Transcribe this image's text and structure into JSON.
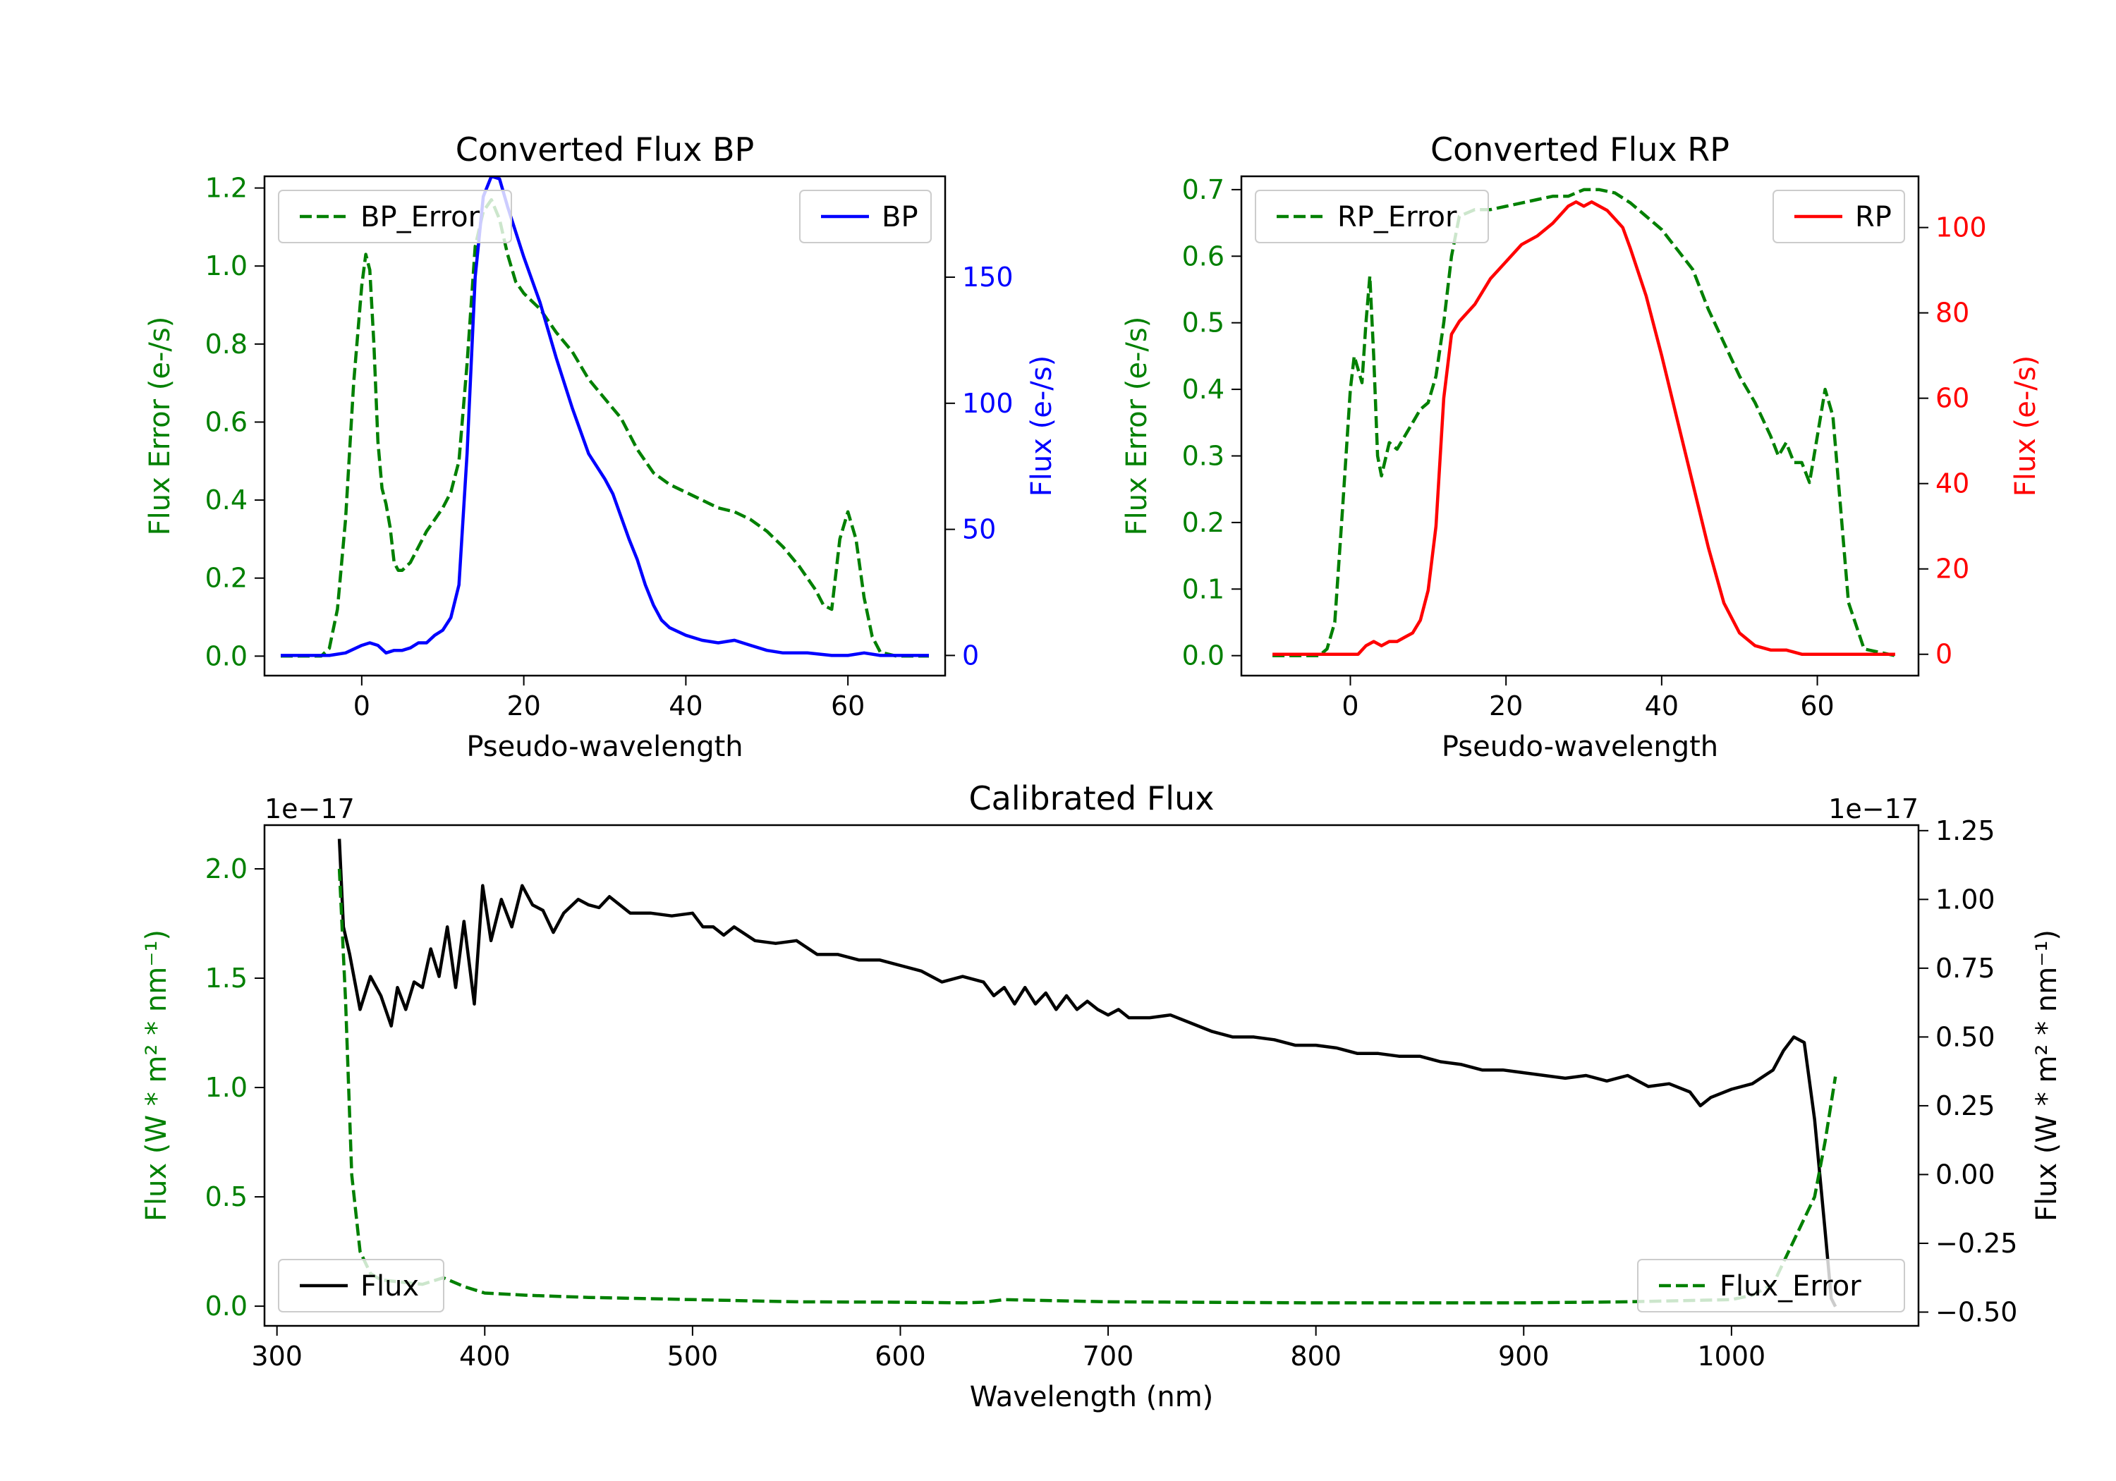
{
  "colors": {
    "green": "#008000",
    "blue": "#0000ff",
    "red": "#ff0000",
    "black": "#000000"
  },
  "chart_data": [
    {
      "id": "bp",
      "type": "line",
      "title": "Converted Flux BP",
      "xlabel": "Pseudo-wavelength",
      "ylabel_left": "Flux Error (e-/s)",
      "ylabel_right": "Flux (e-/s)",
      "xlim": [
        -12,
        72
      ],
      "ylim_left": [
        -0.05,
        1.23
      ],
      "ylim_right": [
        -8,
        190
      ],
      "xticks": [
        {
          "v": 0,
          "label": "0"
        },
        {
          "v": 20,
          "label": "20"
        },
        {
          "v": 40,
          "label": "40"
        },
        {
          "v": 60,
          "label": "60"
        }
      ],
      "yticks_left": [
        {
          "v": 0.0,
          "label": "0.0"
        },
        {
          "v": 0.2,
          "label": "0.2"
        },
        {
          "v": 0.4,
          "label": "0.4"
        },
        {
          "v": 0.6,
          "label": "0.6"
        },
        {
          "v": 0.8,
          "label": "0.8"
        },
        {
          "v": 1.0,
          "label": "1.0"
        },
        {
          "v": 1.2,
          "label": "1.2"
        }
      ],
      "yticks_right": [
        {
          "v": 0,
          "label": "0"
        },
        {
          "v": 50,
          "label": "50"
        },
        {
          "v": 100,
          "label": "100"
        },
        {
          "v": 150,
          "label": "150"
        }
      ],
      "series": [
        {
          "name": "BP_Error",
          "axis": "left",
          "color": "#008000",
          "dashed": true,
          "x": [
            -10,
            -5,
            -4,
            -3,
            -2,
            -1,
            0,
            0.5,
            1,
            1.5,
            2,
            2.5,
            3,
            3.5,
            4,
            4.5,
            5,
            5.5,
            6,
            7,
            8,
            9,
            10,
            11,
            12,
            13,
            14,
            15,
            16,
            17,
            18,
            19,
            20,
            22,
            24,
            26,
            28,
            30,
            32,
            34,
            36,
            38,
            40,
            42,
            44,
            46,
            48,
            50,
            52,
            54,
            56,
            57,
            58,
            59,
            60,
            61,
            62,
            63,
            64,
            66,
            68,
            70
          ],
          "y": [
            0.0,
            0.0,
            0.02,
            0.12,
            0.35,
            0.7,
            0.95,
            1.03,
            0.99,
            0.8,
            0.55,
            0.43,
            0.39,
            0.33,
            0.24,
            0.22,
            0.22,
            0.23,
            0.24,
            0.28,
            0.32,
            0.35,
            0.38,
            0.42,
            0.5,
            0.75,
            1.05,
            1.14,
            1.17,
            1.12,
            1.03,
            0.96,
            0.93,
            0.89,
            0.83,
            0.78,
            0.71,
            0.66,
            0.61,
            0.53,
            0.47,
            0.44,
            0.42,
            0.4,
            0.38,
            0.37,
            0.35,
            0.32,
            0.28,
            0.23,
            0.17,
            0.13,
            0.12,
            0.3,
            0.37,
            0.3,
            0.15,
            0.05,
            0.01,
            0.0,
            0.0,
            0.0
          ]
        },
        {
          "name": "BP",
          "axis": "right",
          "color": "#0000ff",
          "dashed": false,
          "x": [
            -10,
            -4,
            -2,
            0,
            1,
            2,
            3,
            4,
            5,
            6,
            7,
            8,
            9,
            10,
            11,
            12,
            13,
            14,
            15,
            16,
            17,
            18,
            19,
            20,
            22,
            24,
            26,
            28,
            30,
            31,
            32,
            33,
            34,
            35,
            36,
            37,
            38,
            40,
            42,
            44,
            46,
            48,
            50,
            52,
            55,
            58,
            60,
            62,
            64,
            66,
            70
          ],
          "y": [
            0,
            0,
            1,
            4,
            5,
            4,
            1,
            2,
            2,
            3,
            5,
            5,
            8,
            10,
            15,
            28,
            80,
            150,
            182,
            190,
            189,
            178,
            168,
            158,
            140,
            118,
            98,
            80,
            70,
            64,
            55,
            46,
            38,
            28,
            20,
            14,
            11,
            8,
            6,
            5,
            6,
            4,
            2,
            1,
            1,
            0,
            0,
            1,
            0,
            0,
            0
          ]
        }
      ],
      "legends": [
        {
          "loc": "upper left",
          "entries": [
            {
              "series": "BP_Error",
              "label": "BP_Error"
            }
          ]
        },
        {
          "loc": "upper right",
          "entries": [
            {
              "series": "BP",
              "label": "BP"
            }
          ]
        }
      ]
    },
    {
      "id": "rp",
      "type": "line",
      "title": "Converted Flux RP",
      "xlabel": "Pseudo-wavelength",
      "ylabel_left": "Flux Error (e-/s)",
      "ylabel_right": "Flux (e-/s)",
      "xlim": [
        -14,
        73
      ],
      "ylim_left": [
        -0.03,
        0.72
      ],
      "ylim_right": [
        -5,
        112
      ],
      "xticks": [
        {
          "v": 0,
          "label": "0"
        },
        {
          "v": 20,
          "label": "20"
        },
        {
          "v": 40,
          "label": "40"
        },
        {
          "v": 60,
          "label": "60"
        }
      ],
      "yticks_left": [
        {
          "v": 0.0,
          "label": "0.0"
        },
        {
          "v": 0.1,
          "label": "0.1"
        },
        {
          "v": 0.2,
          "label": "0.2"
        },
        {
          "v": 0.3,
          "label": "0.3"
        },
        {
          "v": 0.4,
          "label": "0.4"
        },
        {
          "v": 0.5,
          "label": "0.5"
        },
        {
          "v": 0.6,
          "label": "0.6"
        },
        {
          "v": 0.7,
          "label": "0.7"
        }
      ],
      "yticks_right": [
        {
          "v": 0,
          "label": "0"
        },
        {
          "v": 20,
          "label": "20"
        },
        {
          "v": 40,
          "label": "40"
        },
        {
          "v": 60,
          "label": "60"
        },
        {
          "v": 80,
          "label": "80"
        },
        {
          "v": 100,
          "label": "100"
        }
      ],
      "series": [
        {
          "name": "RP_Error",
          "axis": "left",
          "color": "#008000",
          "dashed": true,
          "x": [
            -10,
            -4,
            -3,
            -2,
            -1,
            0,
            0.5,
            1,
            1.5,
            2,
            2.5,
            3,
            3.5,
            4,
            5,
            6,
            7,
            8,
            9,
            10,
            11,
            12,
            13,
            14,
            16,
            18,
            20,
            22,
            24,
            26,
            28,
            30,
            32,
            34,
            36,
            38,
            40,
            42,
            44,
            46,
            48,
            50,
            52,
            54,
            55,
            56,
            57,
            58,
            59,
            60,
            61,
            62,
            63,
            64,
            66,
            70
          ],
          "y": [
            0.0,
            0.0,
            0.01,
            0.05,
            0.22,
            0.4,
            0.45,
            0.43,
            0.41,
            0.5,
            0.57,
            0.45,
            0.3,
            0.27,
            0.32,
            0.31,
            0.33,
            0.35,
            0.37,
            0.38,
            0.42,
            0.5,
            0.6,
            0.66,
            0.67,
            0.67,
            0.675,
            0.68,
            0.685,
            0.69,
            0.69,
            0.7,
            0.7,
            0.695,
            0.68,
            0.66,
            0.64,
            0.61,
            0.58,
            0.52,
            0.47,
            0.42,
            0.38,
            0.33,
            0.3,
            0.32,
            0.29,
            0.29,
            0.26,
            0.33,
            0.4,
            0.36,
            0.22,
            0.08,
            0.01,
            0.0
          ]
        },
        {
          "name": "RP",
          "axis": "right",
          "color": "#ff0000",
          "dashed": false,
          "x": [
            -10,
            -2,
            0,
            1,
            2,
            3,
            4,
            5,
            6,
            7,
            8,
            9,
            10,
            11,
            12,
            13,
            14,
            16,
            18,
            20,
            22,
            24,
            26,
            27,
            28,
            29,
            30,
            31,
            32,
            33,
            34,
            35,
            36,
            38,
            40,
            42,
            44,
            46,
            48,
            50,
            52,
            54,
            56,
            58,
            62,
            66,
            70
          ],
          "y": [
            0,
            0,
            0,
            0,
            2,
            3,
            2,
            3,
            3,
            4,
            5,
            8,
            15,
            30,
            60,
            75,
            78,
            82,
            88,
            92,
            96,
            98,
            101,
            103,
            105,
            106,
            105,
            106,
            105,
            104,
            102,
            100,
            95,
            84,
            70,
            55,
            40,
            25,
            12,
            5,
            2,
            1,
            1,
            0,
            0,
            0,
            0
          ]
        }
      ],
      "legends": [
        {
          "loc": "upper left",
          "entries": [
            {
              "series": "RP_Error",
              "label": "RP_Error"
            }
          ]
        },
        {
          "loc": "upper right",
          "entries": [
            {
              "series": "RP",
              "label": "RP"
            }
          ]
        }
      ]
    },
    {
      "id": "cal",
      "type": "line",
      "title": "Calibrated Flux",
      "xlabel": "Wavelength (nm)",
      "ylabel_left": "Flux (W * m² * nm⁻¹)",
      "ylabel_right": "Flux (W * m² * nm⁻¹)",
      "offset_left": "1e−17",
      "offset_right": "1e−17",
      "xlim": [
        294,
        1090
      ],
      "ylim_left": [
        -0.09,
        2.2
      ],
      "ylim_right": [
        -0.55,
        1.27
      ],
      "xticks": [
        {
          "v": 300,
          "label": "300"
        },
        {
          "v": 400,
          "label": "400"
        },
        {
          "v": 500,
          "label": "500"
        },
        {
          "v": 600,
          "label": "600"
        },
        {
          "v": 700,
          "label": "700"
        },
        {
          "v": 800,
          "label": "800"
        },
        {
          "v": 900,
          "label": "900"
        },
        {
          "v": 1000,
          "label": "1000"
        }
      ],
      "yticks_left": [
        {
          "v": 0.0,
          "label": "0.0"
        },
        {
          "v": 0.5,
          "label": "0.5"
        },
        {
          "v": 1.0,
          "label": "1.0"
        },
        {
          "v": 1.5,
          "label": "1.5"
        },
        {
          "v": 2.0,
          "label": "2.0"
        }
      ],
      "yticks_right": [
        {
          "v": -0.5,
          "label": "−0.50"
        },
        {
          "v": -0.25,
          "label": "−0.25"
        },
        {
          "v": 0.0,
          "label": "0.00"
        },
        {
          "v": 0.25,
          "label": "0.25"
        },
        {
          "v": 0.5,
          "label": "0.50"
        },
        {
          "v": 0.75,
          "label": "0.75"
        },
        {
          "v": 1.0,
          "label": "1.00"
        },
        {
          "v": 1.25,
          "label": "1.25"
        }
      ],
      "series": [
        {
          "name": "Flux",
          "axis": "right",
          "color": "#000000",
          "dashed": false,
          "x": [
            330,
            332,
            335,
            340,
            345,
            350,
            355,
            358,
            362,
            366,
            370,
            374,
            378,
            382,
            386,
            390,
            395,
            399,
            403,
            408,
            413,
            418,
            423,
            428,
            433,
            438,
            445,
            450,
            455,
            460,
            465,
            470,
            480,
            490,
            500,
            505,
            510,
            515,
            520,
            530,
            540,
            550,
            560,
            570,
            580,
            590,
            600,
            610,
            620,
            630,
            640,
            645,
            650,
            655,
            660,
            665,
            670,
            675,
            680,
            685,
            690,
            695,
            700,
            705,
            710,
            720,
            730,
            740,
            750,
            760,
            770,
            780,
            790,
            800,
            810,
            820,
            830,
            840,
            850,
            860,
            870,
            880,
            890,
            900,
            910,
            920,
            930,
            940,
            950,
            960,
            970,
            980,
            985,
            990,
            1000,
            1010,
            1020,
            1025,
            1030,
            1035,
            1040,
            1045,
            1048,
            1050
          ],
          "y": [
            1.22,
            0.9,
            0.8,
            0.6,
            0.72,
            0.65,
            0.54,
            0.68,
            0.6,
            0.7,
            0.68,
            0.82,
            0.72,
            0.9,
            0.68,
            0.92,
            0.62,
            1.05,
            0.85,
            1.0,
            0.9,
            1.05,
            0.98,
            0.96,
            0.88,
            0.95,
            1.0,
            0.98,
            0.97,
            1.01,
            0.98,
            0.95,
            0.95,
            0.94,
            0.95,
            0.9,
            0.9,
            0.87,
            0.9,
            0.85,
            0.84,
            0.85,
            0.8,
            0.8,
            0.78,
            0.78,
            0.76,
            0.74,
            0.7,
            0.72,
            0.7,
            0.65,
            0.68,
            0.62,
            0.68,
            0.62,
            0.66,
            0.6,
            0.65,
            0.6,
            0.63,
            0.6,
            0.58,
            0.6,
            0.57,
            0.57,
            0.58,
            0.55,
            0.52,
            0.5,
            0.5,
            0.49,
            0.47,
            0.47,
            0.46,
            0.44,
            0.44,
            0.43,
            0.43,
            0.41,
            0.4,
            0.38,
            0.38,
            0.37,
            0.36,
            0.35,
            0.36,
            0.34,
            0.36,
            0.32,
            0.33,
            0.3,
            0.25,
            0.28,
            0.31,
            0.33,
            0.38,
            0.45,
            0.5,
            0.48,
            0.2,
            -0.2,
            -0.45,
            -0.48
          ]
        },
        {
          "name": "Flux_Error",
          "axis": "left",
          "color": "#008000",
          "dashed": true,
          "x": [
            330,
            333,
            336,
            340,
            345,
            350,
            360,
            370,
            380,
            390,
            400,
            420,
            450,
            500,
            550,
            600,
            630,
            640,
            650,
            700,
            800,
            900,
            950,
            1000,
            1010,
            1020,
            1030,
            1040,
            1045,
            1050
          ],
          "y": [
            2.0,
            1.4,
            0.6,
            0.25,
            0.15,
            0.12,
            0.11,
            0.1,
            0.13,
            0.09,
            0.06,
            0.05,
            0.04,
            0.03,
            0.02,
            0.018,
            0.015,
            0.018,
            0.03,
            0.02,
            0.015,
            0.015,
            0.02,
            0.03,
            0.05,
            0.1,
            0.3,
            0.5,
            0.75,
            1.05
          ]
        }
      ],
      "legends": [
        {
          "loc": "lower left",
          "entries": [
            {
              "series": "Flux",
              "label": "Flux"
            }
          ]
        },
        {
          "loc": "lower right",
          "entries": [
            {
              "series": "Flux_Error",
              "label": "Flux_Error"
            }
          ]
        }
      ]
    }
  ]
}
